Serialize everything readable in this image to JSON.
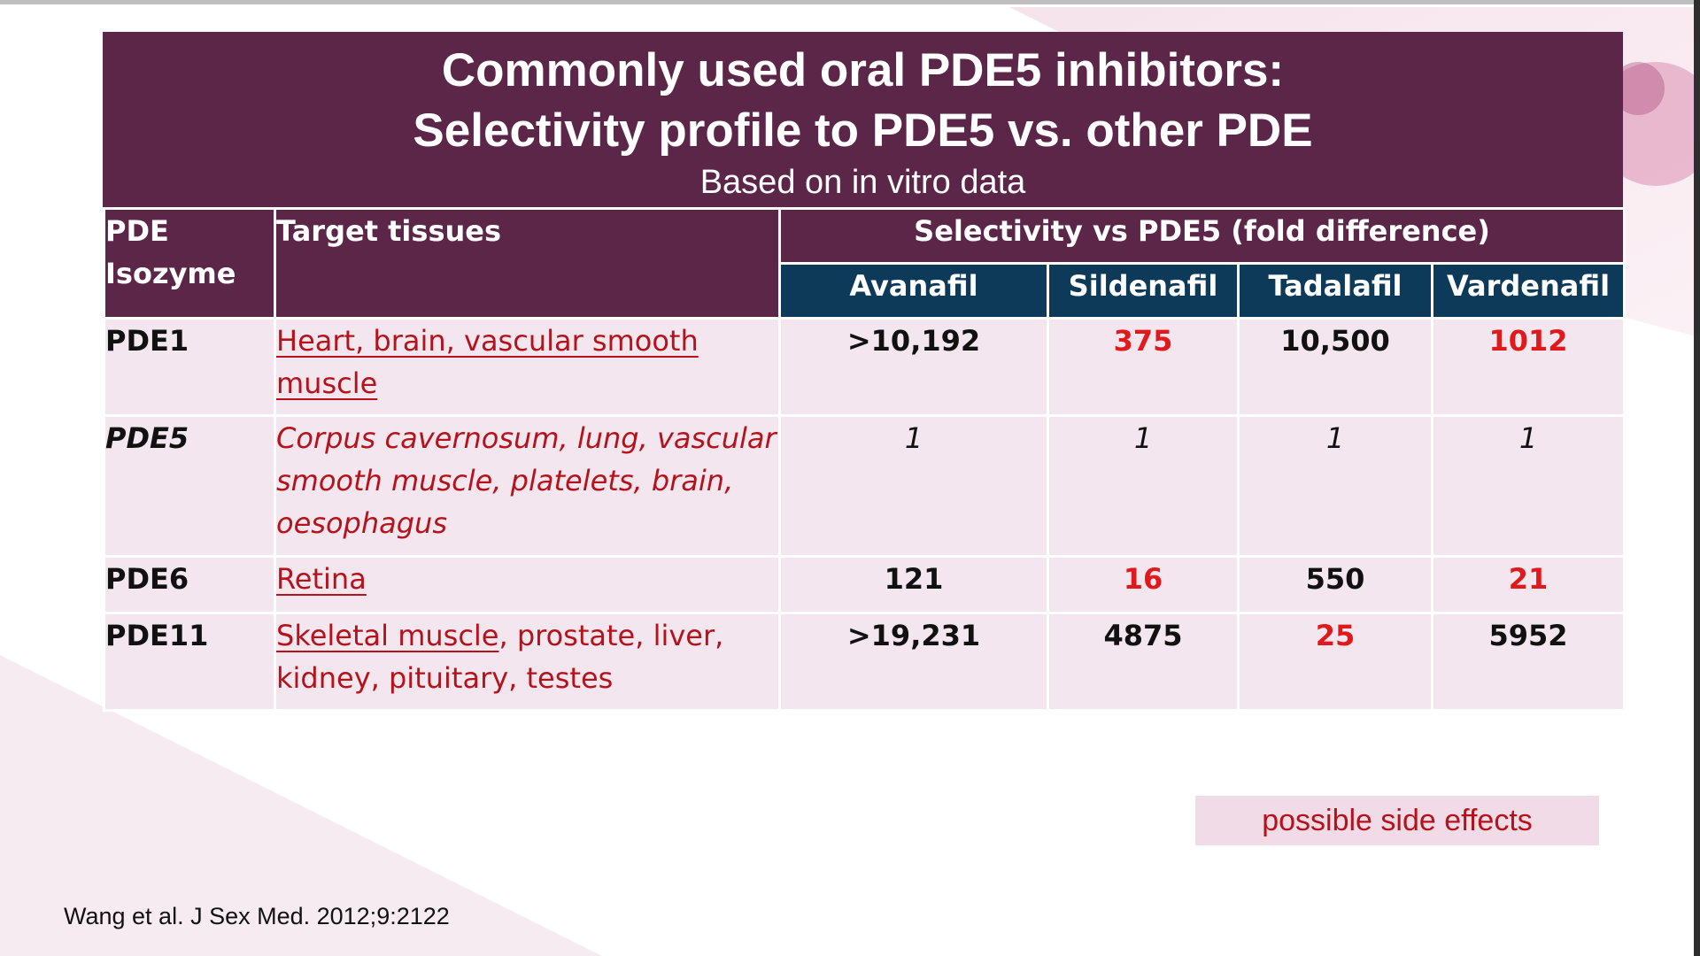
{
  "slide": {
    "title_line1": "Commonly used oral PDE5 inhibitors:",
    "title_line2": "Selectivity profile to PDE5 vs. other PDE",
    "subtitle": "Based on in vitro data"
  },
  "table": {
    "col_isozyme_line1": "PDE",
    "col_isozyme_line2": "Isozyme",
    "col_tissues": "Target tissues",
    "col_selectivity": "Selectivity vs PDE5 (fold difference)",
    "drugs": [
      "Avanafil",
      "Sildenafil",
      "Tadalafil",
      "Vardenafil"
    ],
    "rows": [
      {
        "isozyme": "PDE1",
        "tissue_a": "Heart",
        "tissue_b": ", brain, vascular smooth muscle",
        "values": [
          ">10,192",
          "375",
          "10,500",
          "1012"
        ]
      },
      {
        "isozyme": "PDE5",
        "tissue_a": "Corpus cavernosum, lung, vascular smooth muscle, platelets, brain, oesophagus",
        "values": [
          "1",
          "1",
          "1",
          "1"
        ]
      },
      {
        "isozyme": "PDE6",
        "tissue_a": "Retina",
        "values": [
          "121",
          "16",
          "550",
          "21"
        ]
      },
      {
        "isozyme": "PDE11",
        "tissue_a": "Skeletal muscle",
        "tissue_b": ", prostate, liver, kidney, pituitary, testes",
        "values": [
          ">19,231",
          "4875",
          "25",
          "5952"
        ]
      }
    ]
  },
  "legend_note": "possible side effects",
  "citation": "Wang et al. J Sex Med. 2012;9:2122",
  "colors": {
    "header_purple": "#5c2648",
    "drug_header_navy": "#0e3a5a",
    "cell_pink": "#f3e6ee",
    "highlight_red": "#e0191c",
    "tissue_red": "#b5121b"
  }
}
